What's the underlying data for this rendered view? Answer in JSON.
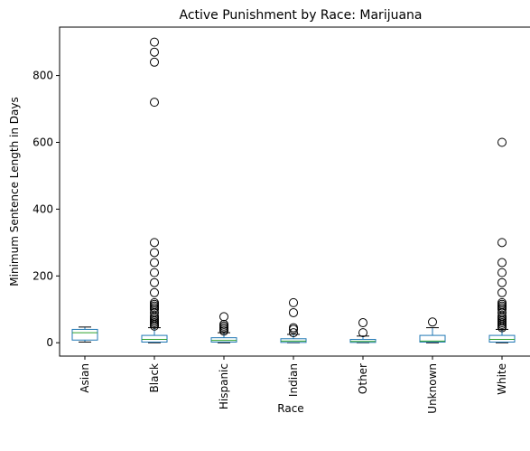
{
  "chart_data": {
    "type": "box",
    "title": "Active Punishment by Race: Marijuana",
    "xlabel": "Race",
    "ylabel": "Minimum Sentence Length in Days",
    "ylim": [
      -40,
      945
    ],
    "yticks": [
      0,
      200,
      400,
      600,
      800
    ],
    "grid": false,
    "colors": {
      "box": "#1f77b4",
      "median": "#2ca02c",
      "whisker": "#1f77b4",
      "cap": "#000000",
      "flier": "#000000"
    },
    "categories": [
      "Asian",
      "Black",
      "Hispanic",
      "Indian",
      "Other",
      "Unknown",
      "White"
    ],
    "boxes": [
      {
        "category": "Asian",
        "whislo": 2,
        "q1": 8,
        "med": 30,
        "q3": 40,
        "whishi": 47,
        "fliers": []
      },
      {
        "category": "Black",
        "whislo": 0,
        "q1": 2,
        "med": 10,
        "q3": 22,
        "whishi": 45,
        "fliers": [
          50,
          55,
          60,
          65,
          70,
          75,
          80,
          90,
          100,
          105,
          110,
          115,
          120,
          150,
          180,
          210,
          240,
          270,
          300,
          720,
          840,
          870,
          900
        ]
      },
      {
        "category": "Hispanic",
        "whislo": 0,
        "q1": 2,
        "med": 7,
        "q3": 15,
        "whishi": 30,
        "fliers": [
          35,
          40,
          45,
          50,
          55,
          78
        ]
      },
      {
        "category": "Indian",
        "whislo": 0,
        "q1": 1,
        "med": 5,
        "q3": 12,
        "whishi": 25,
        "fliers": [
          30,
          40,
          45,
          90,
          120
        ]
      },
      {
        "category": "Other",
        "whislo": 0,
        "q1": 1,
        "med": 4,
        "q3": 10,
        "whishi": 20,
        "fliers": [
          30,
          60
        ]
      },
      {
        "category": "Unknown",
        "whislo": 0,
        "q1": 2,
        "med": 5,
        "q3": 22,
        "whishi": 45,
        "fliers": [
          62
        ]
      },
      {
        "category": "White",
        "whislo": 0,
        "q1": 2,
        "med": 10,
        "q3": 22,
        "whishi": 40,
        "fliers": [
          45,
          50,
          55,
          60,
          65,
          70,
          75,
          80,
          90,
          100,
          105,
          110,
          115,
          120,
          150,
          180,
          210,
          240,
          300,
          600
        ]
      }
    ]
  }
}
